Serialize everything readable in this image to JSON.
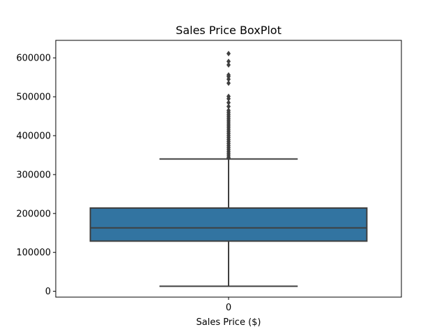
{
  "chart_data": {
    "type": "box",
    "title": "Sales Price BoxPlot",
    "xlabel": "Sales Price ($)",
    "ylabel": "",
    "categories": [
      "0"
    ],
    "ylim": [
      -15000,
      645000
    ],
    "yticks": [
      0,
      100000,
      200000,
      300000,
      400000,
      500000,
      600000
    ],
    "ytick_labels": [
      "0",
      "100000",
      "200000",
      "300000",
      "400000",
      "500000",
      "600000"
    ],
    "colors": {
      "box_fill": "#3274a1",
      "line": "#3f3f3f"
    },
    "series": [
      {
        "category": "0",
        "whisker_low": 13000,
        "q1": 129000,
        "median": 163000,
        "q3": 214000,
        "whisker_high": 340000,
        "outliers": [
          342000,
          345000,
          350000,
          355000,
          360000,
          365000,
          370000,
          375000,
          380000,
          385000,
          390000,
          395000,
          400000,
          405000,
          410000,
          415000,
          420000,
          425000,
          430000,
          435000,
          440000,
          445000,
          450000,
          455000,
          460000,
          465000,
          475000,
          485000,
          495000,
          501000,
          535000,
          545000,
          552000,
          556000,
          582000,
          591000,
          611000
        ]
      }
    ]
  }
}
